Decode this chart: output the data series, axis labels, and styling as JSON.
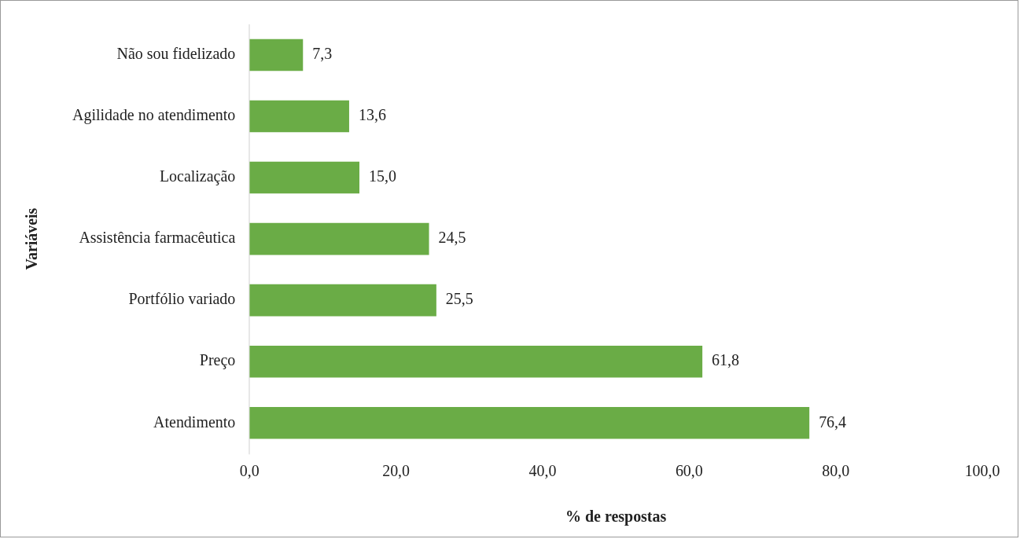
{
  "chart_data": {
    "type": "bar",
    "orientation": "horizontal",
    "categories": [
      "Não sou fidelizado",
      "Agilidade no atendimento",
      "Localização",
      "Assistência farmacêutica",
      "Portfólio variado",
      "Preço",
      "Atendimento"
    ],
    "values": [
      7.3,
      13.6,
      15.0,
      24.5,
      25.5,
      61.8,
      76.4
    ],
    "value_labels": [
      "7,3",
      "13,6",
      "15,0",
      "24,5",
      "25,5",
      "61,8",
      "76,4"
    ],
    "color": "#6aac46",
    "xlim": [
      0,
      100
    ],
    "xticks": [
      {
        "value": 0,
        "label": "0,0"
      },
      {
        "value": 20,
        "label": "20,0"
      },
      {
        "value": 40,
        "label": "40,0"
      },
      {
        "value": 60,
        "label": "60,0"
      },
      {
        "value": 80,
        "label": "80,0"
      },
      {
        "value": 100,
        "label": "100,0"
      }
    ],
    "xlabel": "% de respostas",
    "ylabel": "Variáveis"
  }
}
